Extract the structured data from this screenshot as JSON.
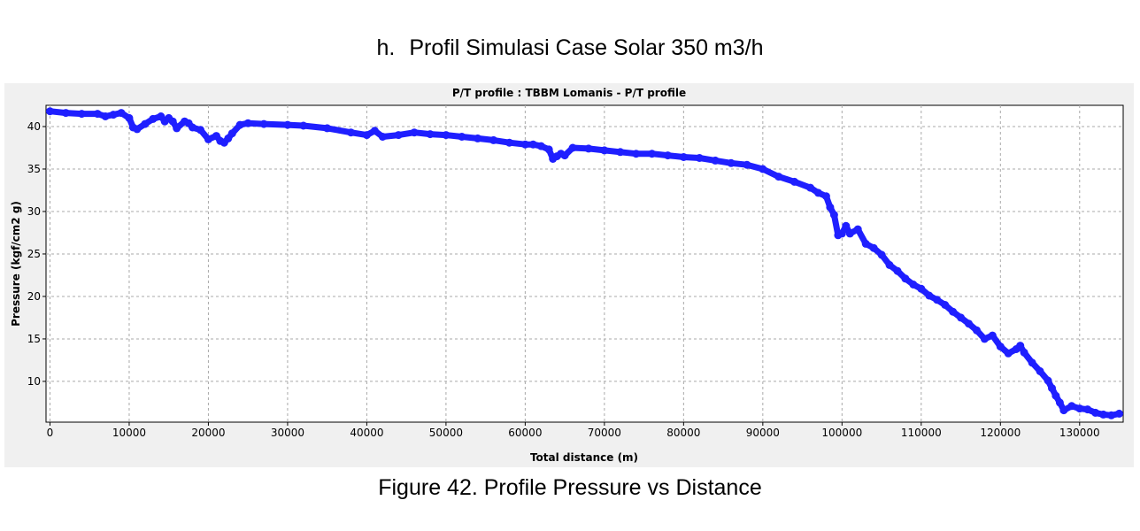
{
  "header": {
    "marker": "h.",
    "title": "Profil Simulasi Case Solar 350 m3/h"
  },
  "caption": "Figure 42. Profile Pressure vs Distance",
  "colors": {
    "series": "#1f1fff",
    "plot_background": "#ffffff",
    "panel_background": "#f0f0f0",
    "grid": "#a9a9a9"
  },
  "chart_data": {
    "type": "scatter",
    "title": "P/T profile : TBBM Lomanis - P/T profile",
    "xlabel": "Total distance (m)",
    "ylabel": "Pressure (kgf/cm2 g)",
    "xlim": [
      -500,
      135500
    ],
    "ylim": [
      5.2,
      42.5
    ],
    "xticks": [
      0,
      10000,
      20000,
      30000,
      40000,
      50000,
      60000,
      70000,
      80000,
      90000,
      100000,
      110000,
      120000,
      130000
    ],
    "yticks": [
      10,
      15,
      20,
      25,
      30,
      35,
      40
    ],
    "grid": true,
    "legend": "none",
    "series": [
      {
        "x": [
          0,
          2000,
          4000,
          6000,
          7000,
          8000,
          9000,
          10000,
          10500,
          11000,
          12000,
          13000,
          14000,
          14500,
          15000,
          15500,
          16000,
          17000,
          17500,
          18000,
          19000,
          20000,
          21000,
          21500,
          22000,
          22500,
          23000,
          24000,
          25000,
          27000,
          30000,
          32000,
          35000,
          38000,
          40000,
          41000,
          42000,
          44000,
          46000,
          48000,
          50000,
          52000,
          54000,
          56000,
          58000,
          60000,
          61000,
          62000,
          63000,
          63500,
          64000,
          64500,
          65000,
          66000,
          68000,
          70000,
          72000,
          74000,
          76000,
          78000,
          80000,
          82000,
          84000,
          86000,
          88000,
          90000,
          92000,
          94000,
          96000,
          97000,
          98000,
          98500,
          99000,
          99500,
          100000,
          100500,
          101000,
          102000,
          103000,
          104000,
          105000,
          106000,
          107000,
          108000,
          109000,
          110000,
          111000,
          112000,
          113000,
          114000,
          115000,
          116000,
          117000,
          118000,
          119000,
          120000,
          121000,
          122000,
          122500,
          123000,
          124000,
          125000,
          126000,
          126500,
          127000,
          127500,
          128000,
          129000,
          130000,
          131000,
          132000,
          133000,
          134000,
          135000
        ],
        "y": [
          41.8,
          41.6,
          41.5,
          41.5,
          41.2,
          41.4,
          41.6,
          41.0,
          39.9,
          39.7,
          40.3,
          40.9,
          41.2,
          40.6,
          41.0,
          40.6,
          39.8,
          40.6,
          40.4,
          39.9,
          39.6,
          38.5,
          38.9,
          38.3,
          38.1,
          38.6,
          39.2,
          40.2,
          40.4,
          40.3,
          40.2,
          40.1,
          39.8,
          39.3,
          39.0,
          39.5,
          38.8,
          39.0,
          39.3,
          39.1,
          39.0,
          38.8,
          38.6,
          38.4,
          38.1,
          37.9,
          37.9,
          37.7,
          37.3,
          36.2,
          36.5,
          36.8,
          36.6,
          37.5,
          37.4,
          37.2,
          37.0,
          36.8,
          36.8,
          36.6,
          36.4,
          36.3,
          36.0,
          35.7,
          35.5,
          35.0,
          34.1,
          33.5,
          32.8,
          32.2,
          31.8,
          30.5,
          29.6,
          27.2,
          27.4,
          28.3,
          27.4,
          27.9,
          26.2,
          25.7,
          24.9,
          23.7,
          23.0,
          22.1,
          21.4,
          20.9,
          20.1,
          19.6,
          19.0,
          18.2,
          17.5,
          16.8,
          16.0,
          15.0,
          15.4,
          14.1,
          13.3,
          13.8,
          14.2,
          13.4,
          12.2,
          11.2,
          10.1,
          9.2,
          8.3,
          7.5,
          6.6,
          7.1,
          6.8,
          6.7,
          6.3,
          6.1,
          6.0,
          6.2
        ]
      }
    ]
  }
}
